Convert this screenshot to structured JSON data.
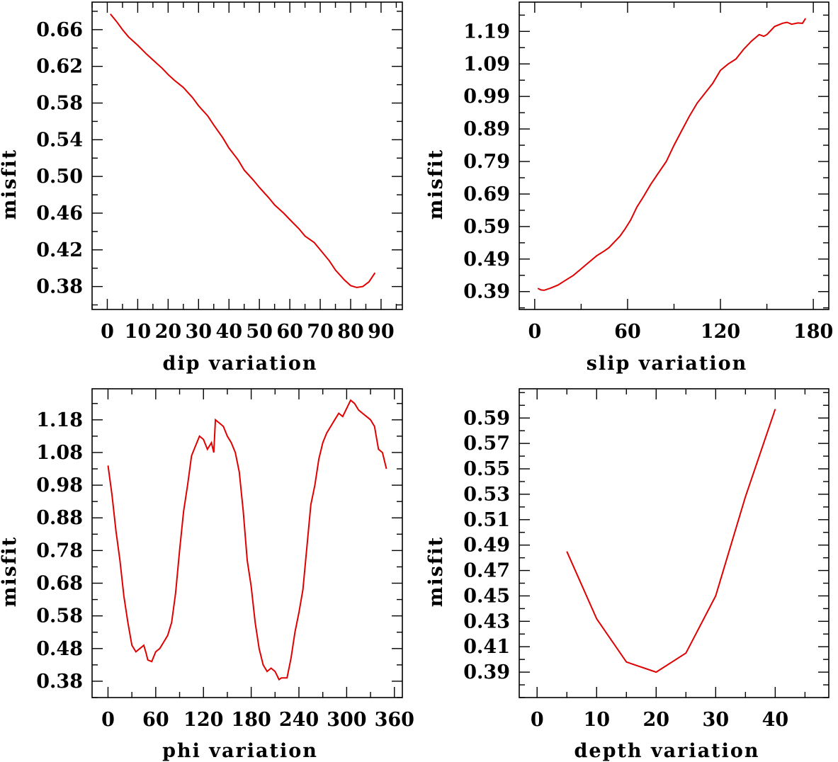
{
  "chart_data": [
    {
      "type": "line",
      "xlabel": "dip    variation",
      "ylabel": "misfit",
      "xlim": [
        -5,
        97
      ],
      "ylim": [
        0.355,
        0.69
      ],
      "x_ticks": [
        0,
        10,
        20,
        30,
        40,
        50,
        60,
        70,
        80,
        90
      ],
      "x_tick_labels": [
        "0",
        "10",
        "20",
        "30",
        "40",
        "50",
        "60",
        "70",
        "80",
        "90"
      ],
      "y_ticks": [
        0.38,
        0.42,
        0.46,
        0.5,
        0.54,
        0.58,
        0.62,
        0.66
      ],
      "y_tick_labels": [
        "0.38",
        "0.42",
        "0.46",
        "0.50",
        "0.54",
        "0.58",
        "0.62",
        "0.66"
      ],
      "series": [
        {
          "color": "#e00000",
          "x": [
            1,
            3,
            5,
            7,
            10,
            13,
            15,
            18,
            20,
            22,
            25,
            28,
            30,
            33,
            35,
            38,
            40,
            43,
            45,
            48,
            50,
            53,
            55,
            58,
            60,
            63,
            65,
            68,
            70,
            73,
            75,
            78,
            79,
            80,
            82,
            84,
            86,
            87,
            88
          ],
          "y": [
            0.677,
            0.669,
            0.66,
            0.652,
            0.643,
            0.633,
            0.627,
            0.618,
            0.611,
            0.605,
            0.597,
            0.586,
            0.577,
            0.566,
            0.556,
            0.542,
            0.531,
            0.518,
            0.507,
            0.496,
            0.488,
            0.477,
            0.469,
            0.46,
            0.453,
            0.443,
            0.435,
            0.428,
            0.42,
            0.408,
            0.398,
            0.387,
            0.384,
            0.381,
            0.379,
            0.38,
            0.385,
            0.39,
            0.395
          ]
        }
      ]
    },
    {
      "type": "line",
      "xlabel": "slip   variation",
      "ylabel": "misfit",
      "xlim": [
        -10,
        190
      ],
      "ylim": [
        0.335,
        1.28
      ],
      "x_ticks": [
        0,
        60,
        120,
        180
      ],
      "x_tick_labels": [
        "0",
        "60",
        "120",
        "180"
      ],
      "y_ticks": [
        0.39,
        0.49,
        0.59,
        0.69,
        0.79,
        0.89,
        0.99,
        1.09,
        1.19
      ],
      "y_tick_labels": [
        "0.39",
        "0.49",
        "0.59",
        "0.69",
        "0.79",
        "0.89",
        "0.99",
        "1.09",
        "1.19"
      ],
      "series": [
        {
          "color": "#e00000",
          "x": [
            2,
            4,
            6,
            10,
            15,
            20,
            25,
            30,
            35,
            40,
            45,
            48,
            50,
            55,
            58,
            62,
            66,
            70,
            75,
            80,
            85,
            90,
            95,
            100,
            105,
            110,
            115,
            120,
            125,
            130,
            135,
            140,
            145,
            148,
            150,
            155,
            160,
            163,
            166,
            170,
            173,
            175
          ],
          "y": [
            0.4,
            0.395,
            0.394,
            0.4,
            0.41,
            0.425,
            0.44,
            0.46,
            0.48,
            0.5,
            0.515,
            0.525,
            0.535,
            0.56,
            0.58,
            0.61,
            0.65,
            0.68,
            0.72,
            0.755,
            0.79,
            0.84,
            0.885,
            0.93,
            0.97,
            1.0,
            1.03,
            1.07,
            1.09,
            1.105,
            1.135,
            1.16,
            1.18,
            1.175,
            1.18,
            1.205,
            1.215,
            1.218,
            1.212,
            1.216,
            1.215,
            1.23
          ]
        }
      ]
    },
    {
      "type": "line",
      "xlabel": "phi    variation",
      "ylabel": "misfit",
      "xlim": [
        -20,
        370
      ],
      "ylim": [
        0.33,
        1.275
      ],
      "x_ticks": [
        0,
        60,
        120,
        180,
        240,
        300,
        360
      ],
      "x_tick_labels": [
        "0",
        "60",
        "120",
        "180",
        "240",
        "300",
        "360"
      ],
      "y_ticks": [
        0.38,
        0.48,
        0.58,
        0.68,
        0.78,
        0.88,
        0.98,
        1.08,
        1.18
      ],
      "y_tick_labels": [
        "0.38",
        "0.48",
        "0.58",
        "0.68",
        "0.78",
        "0.88",
        "0.98",
        "1.08",
        "1.18"
      ],
      "series": [
        {
          "color": "#e00000",
          "x": [
            0,
            5,
            10,
            15,
            20,
            25,
            30,
            35,
            40,
            45,
            48,
            50,
            55,
            60,
            65,
            70,
            75,
            80,
            85,
            90,
            95,
            100,
            105,
            110,
            115,
            120,
            125,
            130,
            133,
            135,
            140,
            145,
            150,
            155,
            160,
            165,
            170,
            175,
            180,
            185,
            190,
            195,
            200,
            205,
            210,
            215,
            218,
            220,
            225,
            230,
            235,
            240,
            245,
            250,
            255,
            260,
            265,
            270,
            275,
            280,
            285,
            290,
            295,
            300,
            305,
            310,
            315,
            320,
            325,
            330,
            335,
            340,
            345,
            350
          ],
          "y": [
            1.04,
            0.95,
            0.84,
            0.75,
            0.64,
            0.56,
            0.49,
            0.47,
            0.48,
            0.49,
            0.465,
            0.445,
            0.44,
            0.47,
            0.48,
            0.5,
            0.52,
            0.56,
            0.65,
            0.78,
            0.9,
            0.98,
            1.07,
            1.1,
            1.13,
            1.12,
            1.09,
            1.11,
            1.08,
            1.18,
            1.17,
            1.16,
            1.13,
            1.11,
            1.08,
            1.02,
            0.9,
            0.75,
            0.67,
            0.56,
            0.48,
            0.43,
            0.41,
            0.42,
            0.41,
            0.385,
            0.39,
            0.39,
            0.39,
            0.45,
            0.53,
            0.59,
            0.66,
            0.79,
            0.92,
            0.98,
            1.06,
            1.11,
            1.14,
            1.16,
            1.18,
            1.2,
            1.19,
            1.215,
            1.24,
            1.23,
            1.21,
            1.2,
            1.19,
            1.18,
            1.16,
            1.09,
            1.08,
            1.03
          ]
        }
      ]
    },
    {
      "type": "line",
      "xlabel": "depth  variation",
      "ylabel": "misfit",
      "xlim": [
        -3,
        49
      ],
      "ylim": [
        0.37,
        0.613
      ],
      "x_ticks": [
        0,
        10,
        20,
        30,
        40
      ],
      "x_tick_labels": [
        "0",
        "10",
        "20",
        "30",
        "40"
      ],
      "y_ticks": [
        0.39,
        0.41,
        0.43,
        0.45,
        0.47,
        0.49,
        0.51,
        0.53,
        0.55,
        0.57,
        0.59
      ],
      "y_tick_labels": [
        "0.39",
        "0.41",
        "0.43",
        "0.45",
        "0.47",
        "0.49",
        "0.51",
        "0.53",
        "0.55",
        "0.57",
        "0.59"
      ],
      "series": [
        {
          "color": "#e00000",
          "x": [
            5,
            10,
            15,
            20,
            25,
            30,
            35,
            40
          ],
          "y": [
            0.485,
            0.432,
            0.398,
            0.39,
            0.405,
            0.45,
            0.528,
            0.597
          ]
        }
      ]
    }
  ]
}
